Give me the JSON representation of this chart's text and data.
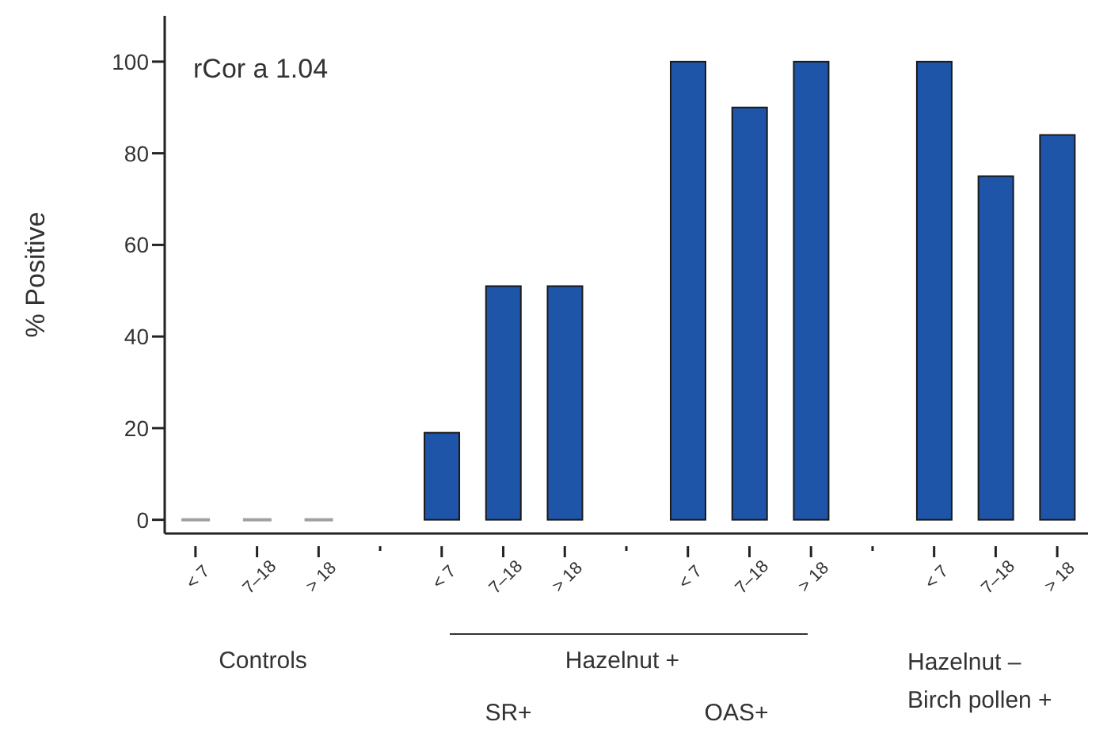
{
  "chart_data": {
    "type": "bar",
    "ylabel": "% Positive",
    "categories": [
      "< 7",
      "7–18",
      "> 18",
      "< 7",
      "7–18",
      "> 18",
      "< 7",
      "7–18",
      "> 18",
      "< 7",
      "7–18",
      "> 18"
    ],
    "values": [
      0,
      0,
      0,
      19,
      51,
      51,
      100,
      90,
      100,
      100,
      75,
      84
    ],
    "colors": [
      "#a0a0a0",
      "#a0a0a0",
      "#a0a0a0",
      "#1f55a8",
      "#1f55a8",
      "#1f55a8",
      "#1f55a8",
      "#1f55a8",
      "#1f55a8",
      "#1f55a8",
      "#1f55a8",
      "#1f55a8"
    ],
    "ylim": [
      -3,
      110
    ],
    "yticks": [
      0,
      20,
      40,
      60,
      80,
      100
    ],
    "grid": false,
    "annotations": [
      "rCor a 1.04",
      "Controls",
      "Hazelnut +",
      "SR+",
      "OAS+",
      "Hazelnut – Birch pollen +"
    ]
  }
}
